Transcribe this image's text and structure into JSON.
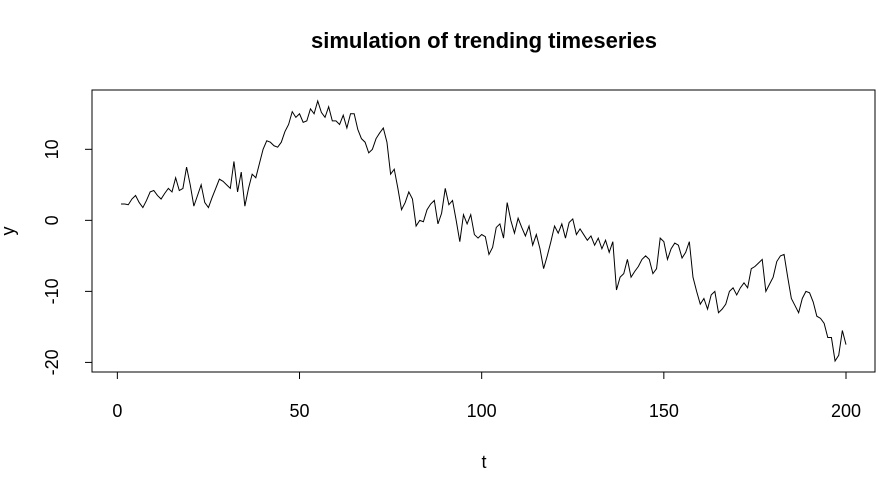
{
  "chart_data": {
    "type": "line",
    "title": "simulation of trending timeseries",
    "x_label": "t",
    "y_label": "y",
    "x": [
      1,
      2,
      3,
      4,
      5,
      6,
      7,
      8,
      9,
      10,
      11,
      12,
      13,
      14,
      15,
      16,
      17,
      18,
      19,
      20,
      21,
      22,
      23,
      24,
      25,
      26,
      27,
      28,
      29,
      30,
      31,
      32,
      33,
      34,
      35,
      36,
      37,
      38,
      39,
      40,
      41,
      42,
      43,
      44,
      45,
      46,
      47,
      48,
      49,
      50,
      51,
      52,
      53,
      54,
      55,
      56,
      57,
      58,
      59,
      60,
      61,
      62,
      63,
      64,
      65,
      66,
      67,
      68,
      69,
      70,
      71,
      72,
      73,
      74,
      75,
      76,
      77,
      78,
      79,
      80,
      81,
      82,
      83,
      84,
      85,
      86,
      87,
      88,
      89,
      90,
      91,
      92,
      93,
      94,
      95,
      96,
      97,
      98,
      99,
      100,
      101,
      102,
      103,
      104,
      105,
      106,
      107,
      108,
      109,
      110,
      111,
      112,
      113,
      114,
      115,
      116,
      117,
      118,
      119,
      120,
      121,
      122,
      123,
      124,
      125,
      126,
      127,
      128,
      129,
      130,
      131,
      132,
      133,
      134,
      135,
      136,
      137,
      138,
      139,
      140,
      141,
      142,
      143,
      144,
      145,
      146,
      147,
      148,
      149,
      150,
      151,
      152,
      153,
      154,
      155,
      156,
      157,
      158,
      159,
      160,
      161,
      162,
      163,
      164,
      165,
      166,
      167,
      168,
      169,
      170,
      171,
      172,
      173,
      174,
      175,
      176,
      177,
      178,
      179,
      180,
      181,
      182,
      183,
      184,
      185,
      186,
      187,
      188,
      189,
      190,
      191,
      192,
      193,
      194,
      195,
      196,
      197,
      198,
      199,
      200
    ],
    "values": [
      2.3,
      2.3,
      2.2,
      3.0,
      3.5,
      2.5,
      1.8,
      2.8,
      4.0,
      4.2,
      3.5,
      3.0,
      3.8,
      4.5,
      4.0,
      6.0,
      4.2,
      4.5,
      7.5,
      5.0,
      2.0,
      3.5,
      5.0,
      2.5,
      1.8,
      3.2,
      4.5,
      5.8,
      5.5,
      5.0,
      4.5,
      8.3,
      4.0,
      6.8,
      2.0,
      4.5,
      6.5,
      6.0,
      8.0,
      10.0,
      11.2,
      11.0,
      10.5,
      10.3,
      11.0,
      12.5,
      13.5,
      15.3,
      14.5,
      15.0,
      13.8,
      14.0,
      15.7,
      15.0,
      16.8,
      15.2,
      14.5,
      16.0,
      14.0,
      14.0,
      13.5,
      14.8,
      13.0,
      15.0,
      15.0,
      12.8,
      11.5,
      11.0,
      9.5,
      10.0,
      11.5,
      12.3,
      13.0,
      11.0,
      6.5,
      7.2,
      4.5,
      1.5,
      2.5,
      4.0,
      3.0,
      -0.8,
      0.0,
      -0.2,
      1.5,
      2.3,
      2.8,
      -0.5,
      1.0,
      4.5,
      2.2,
      2.8,
      0.0,
      -3.0,
      0.8,
      -0.5,
      0.8,
      -2.0,
      -2.5,
      -2.0,
      -2.3,
      -4.8,
      -3.8,
      -1.0,
      -0.5,
      -2.5,
      2.5,
      0.0,
      -1.8,
      0.3,
      -1.0,
      -2.2,
      -0.8,
      -3.5,
      -2.0,
      -4.0,
      -6.8,
      -5.0,
      -3.0,
      -0.8,
      -1.8,
      -0.5,
      -2.5,
      -0.3,
      0.2,
      -2.0,
      -1.2,
      -2.0,
      -2.8,
      -2.2,
      -3.5,
      -2.5,
      -4.0,
      -2.8,
      -4.5,
      -3.0,
      -9.8,
      -8.0,
      -7.5,
      -5.5,
      -8.0,
      -7.2,
      -6.5,
      -5.5,
      -5.0,
      -5.5,
      -7.5,
      -6.8,
      -2.5,
      -3.0,
      -5.5,
      -4.0,
      -3.2,
      -3.5,
      -5.3,
      -4.5,
      -3.0,
      -8.0,
      -10.0,
      -11.8,
      -11.0,
      -12.5,
      -10.5,
      -10.0,
      -13.0,
      -12.5,
      -11.8,
      -10.0,
      -9.5,
      -10.5,
      -9.5,
      -8.8,
      -9.5,
      -6.8,
      -6.5,
      -6.0,
      -5.5,
      -10.0,
      -9.0,
      -8.0,
      -5.8,
      -5.0,
      -4.8,
      -8.0,
      -11.0,
      -12.0,
      -13.0,
      -11.0,
      -10.0,
      -10.2,
      -11.5,
      -13.5,
      -13.8,
      -14.5,
      -16.5,
      -16.5,
      -19.8,
      -19.0,
      -15.5,
      -17.5
    ],
    "color": "#000000",
    "xlim": [
      -6.96,
      207.96
    ],
    "xticks": [
      0,
      50,
      100,
      150,
      200
    ],
    "ylim": [
      -21.35,
      18.35
    ],
    "yticks": [
      -20,
      -10,
      0,
      10
    ],
    "grid": false
  }
}
